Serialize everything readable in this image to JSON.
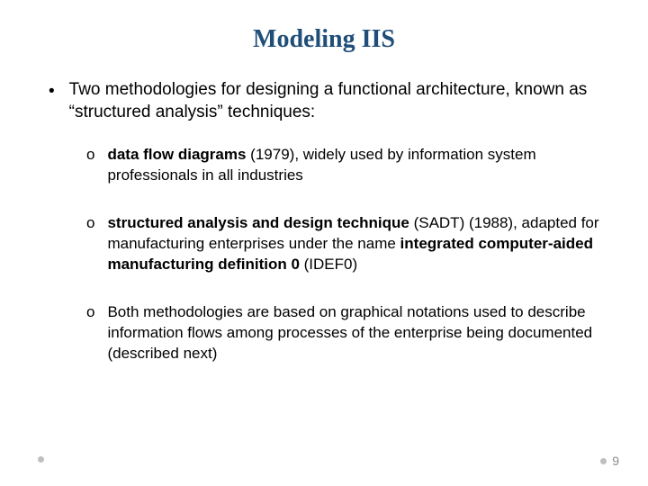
{
  "title": "Modeling IIS",
  "title_color": "#1f4e79",
  "title_fontsize": 28,
  "title_fontfamily": "Georgia, 'Times New Roman', serif",
  "body_fontfamily": "Arial, Helvetica, sans-serif",
  "background_color": "#ffffff",
  "main_bullet": {
    "marker": "•",
    "text": "Two methodologies for designing a functional architecture, known as “structured analysis” techniques:",
    "fontsize": 19
  },
  "sub_bullets": [
    {
      "marker": "o",
      "bold1": "data flow diagrams",
      "after1": " (1979), widely used by information system professionals in all industries"
    },
    {
      "marker": "o",
      "bold1": "structured analysis and design technique",
      "after1": " (SADT) (1988), adapted for manufacturing enterprises under the name ",
      "bold2": "integrated computer-aided manufacturing definition 0",
      "after2": " (IDEF0)"
    },
    {
      "marker": "o",
      "plain": "Both methodologies are based on graphical notations used to describe information flows among processes of the enterprise being documented (described next)"
    }
  ],
  "sub_fontsize": 17,
  "page_number": "9",
  "footer_dot_color": "#bfbfbf",
  "page_number_color": "#8c8c8c"
}
